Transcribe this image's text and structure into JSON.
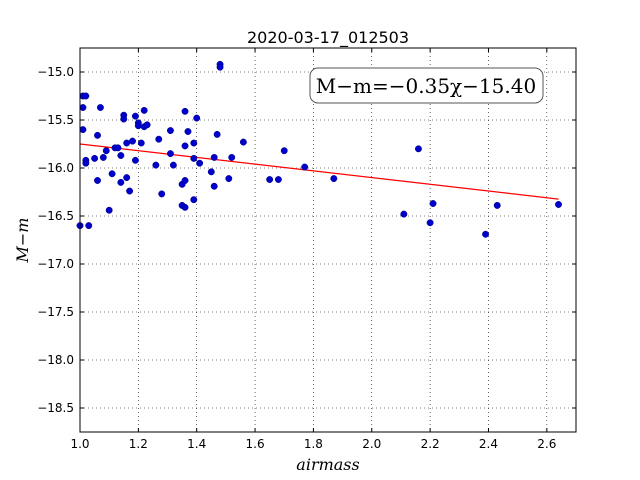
{
  "chart_data": {
    "type": "scatter",
    "title": "2020-03-17_012503",
    "xlabel": "airmass",
    "ylabel": "M−m",
    "xlim": [
      1.0,
      2.7
    ],
    "ylim": [
      -18.75,
      -14.75
    ],
    "y_inverted": true,
    "grid": true,
    "x_ticks": [
      "1.0",
      "1.2",
      "1.4",
      "1.6",
      "1.8",
      "2.0",
      "2.2",
      "2.4",
      "2.6"
    ],
    "y_ticks": [
      "−15.0",
      "−15.5",
      "−16.0",
      "−16.5",
      "−17.0",
      "−17.5",
      "−18.0",
      "−18.5"
    ],
    "annotation": "M−m=−0.35χ−15.40",
    "fit": {
      "slope": -0.35,
      "intercept": -15.4,
      "x_range": [
        1.0,
        2.64
      ],
      "color": "#ff0000"
    },
    "point_color": "#0000cc",
    "points": [
      [
        1.0,
        -16.6
      ],
      [
        1.01,
        -15.25
      ],
      [
        1.01,
        -15.37
      ],
      [
        1.01,
        -15.6
      ],
      [
        1.02,
        -15.25
      ],
      [
        1.02,
        -15.92
      ],
      [
        1.02,
        -15.95
      ],
      [
        1.03,
        -16.6
      ],
      [
        1.05,
        -15.9
      ],
      [
        1.06,
        -16.13
      ],
      [
        1.06,
        -15.66
      ],
      [
        1.07,
        -15.37
      ],
      [
        1.08,
        -15.89
      ],
      [
        1.09,
        -15.82
      ],
      [
        1.1,
        -16.44
      ],
      [
        1.11,
        -16.06
      ],
      [
        1.12,
        -15.79
      ],
      [
        1.13,
        -15.79
      ],
      [
        1.14,
        -16.15
      ],
      [
        1.14,
        -15.87
      ],
      [
        1.15,
        -15.45
      ],
      [
        1.15,
        -15.49
      ],
      [
        1.16,
        -16.1
      ],
      [
        1.16,
        -15.74
      ],
      [
        1.17,
        -16.24
      ],
      [
        1.18,
        -15.72
      ],
      [
        1.19,
        -15.92
      ],
      [
        1.19,
        -15.46
      ],
      [
        1.2,
        -15.53
      ],
      [
        1.2,
        -15.56
      ],
      [
        1.21,
        -15.74
      ],
      [
        1.22,
        -15.4
      ],
      [
        1.22,
        -15.57
      ],
      [
        1.23,
        -15.55
      ],
      [
        1.26,
        -15.97
      ],
      [
        1.27,
        -15.7
      ],
      [
        1.28,
        -16.27
      ],
      [
        1.31,
        -15.61
      ],
      [
        1.31,
        -15.85
      ],
      [
        1.32,
        -15.97
      ],
      [
        1.35,
        -16.39
      ],
      [
        1.35,
        -16.17
      ],
      [
        1.36,
        -15.41
      ],
      [
        1.36,
        -15.77
      ],
      [
        1.36,
        -16.13
      ],
      [
        1.36,
        -16.41
      ],
      [
        1.37,
        -15.62
      ],
      [
        1.39,
        -15.74
      ],
      [
        1.39,
        -15.9
      ],
      [
        1.39,
        -16.33
      ],
      [
        1.4,
        -15.48
      ],
      [
        1.41,
        -15.95
      ],
      [
        1.45,
        -16.04
      ],
      [
        1.46,
        -15.89
      ],
      [
        1.46,
        -16.19
      ],
      [
        1.47,
        -15.65
      ],
      [
        1.48,
        -14.92
      ],
      [
        1.48,
        -14.95
      ],
      [
        1.51,
        -16.11
      ],
      [
        1.52,
        -15.89
      ],
      [
        1.56,
        -15.73
      ],
      [
        1.65,
        -16.12
      ],
      [
        1.68,
        -16.12
      ],
      [
        1.7,
        -15.82
      ],
      [
        1.77,
        -15.99
      ],
      [
        1.87,
        -16.11
      ],
      [
        2.11,
        -16.48
      ],
      [
        2.16,
        -15.8
      ],
      [
        2.2,
        -16.57
      ],
      [
        2.21,
        -16.37
      ],
      [
        2.39,
        -16.69
      ],
      [
        2.43,
        -16.39
      ],
      [
        2.64,
        -16.38
      ]
    ]
  }
}
